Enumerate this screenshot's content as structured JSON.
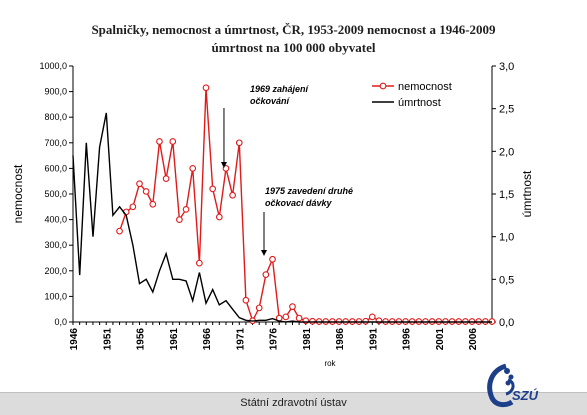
{
  "title_line1": "Spalničky, nemocnost a úmrtnost,  ČR, 1953-2009 nemocnost a 1946-2009",
  "title_line2": "úmrtnost na 100 000 obyvatel",
  "footer_text": "Státní zdravotní ústav",
  "logo_text": "SZÚ",
  "chart_data": {
    "type": "line",
    "xlabel": "rok",
    "ylabel_left": "nemocnost",
    "ylabel_right": "úmrtnost",
    "ylim_left": [
      0,
      1000
    ],
    "ylim_right": [
      0,
      3
    ],
    "yticks_left": [
      "0,0",
      "100,0",
      "200,0",
      "300,0",
      "400,0",
      "500,0",
      "600,0",
      "700,0",
      "800,0",
      "900,0",
      "1000,0"
    ],
    "yticks_right": [
      "0,0",
      "0,5",
      "1,0",
      "1,5",
      "2,0",
      "2,5",
      "3,0"
    ],
    "x_ticks": [
      "1946",
      "1951",
      "1956",
      "1961",
      "1966",
      "1971",
      "1976",
      "1981",
      "1986",
      "1991",
      "1996",
      "2001",
      "2006"
    ],
    "x_range": [
      1946,
      2009
    ],
    "legend_position": "top-right",
    "annotations": [
      {
        "line1": "1969 zahájení",
        "line2": "očkování",
        "year": 1969,
        "value": 590
      },
      {
        "line1": "1975 zavedení druhé",
        "line2": "očkovací dávky",
        "year": 1975,
        "value": 250
      }
    ],
    "series": [
      {
        "name": "nemocnost",
        "axis": "left",
        "color": "#e01b1b",
        "marker": "circle",
        "x": [
          1953,
          1954,
          1955,
          1956,
          1957,
          1958,
          1959,
          1960,
          1961,
          1962,
          1963,
          1964,
          1965,
          1966,
          1967,
          1968,
          1969,
          1970,
          1971,
          1972,
          1973,
          1974,
          1975,
          1976,
          1977,
          1978,
          1979,
          1980,
          1981,
          1982,
          1983,
          1984,
          1985,
          1986,
          1987,
          1988,
          1989,
          1990,
          1991,
          1992,
          1993,
          1994,
          1995,
          1996,
          1997,
          1998,
          1999,
          2000,
          2001,
          2002,
          2003,
          2004,
          2005,
          2006,
          2007,
          2008,
          2009
        ],
        "values": [
          355,
          430,
          450,
          540,
          510,
          460,
          705,
          560,
          705,
          400,
          440,
          600,
          230,
          915,
          520,
          410,
          600,
          495,
          700,
          85,
          5,
          55,
          185,
          245,
          15,
          20,
          60,
          15,
          5,
          3,
          2,
          2,
          2,
          2,
          2,
          2,
          2,
          3,
          20,
          5,
          2,
          2,
          2,
          2,
          2,
          2,
          2,
          2,
          2,
          2,
          2,
          2,
          2,
          2,
          2,
          2,
          2
        ]
      },
      {
        "name": "úmrtnost",
        "axis": "right",
        "color": "#000000",
        "marker": "none",
        "x": [
          1946,
          1947,
          1948,
          1949,
          1950,
          1951,
          1952,
          1953,
          1954,
          1955,
          1956,
          1957,
          1958,
          1959,
          1960,
          1961,
          1962,
          1963,
          1964,
          1965,
          1966,
          1967,
          1968,
          1969,
          1970,
          1971,
          1972,
          1973,
          1974,
          1975,
          1976,
          1977,
          1978,
          1979,
          1980,
          1981,
          1982,
          1983,
          1984,
          1985,
          1986,
          1987,
          1988,
          1989,
          1990,
          1991,
          1992,
          1993,
          1994,
          1995,
          1996,
          1997,
          1998,
          1999,
          2000,
          2001,
          2002,
          2003,
          2004,
          2005,
          2006,
          2007,
          2008,
          2009
        ],
        "values": [
          1.95,
          0.55,
          2.1,
          1.0,
          2.05,
          2.45,
          1.25,
          1.35,
          1.25,
          0.9,
          0.45,
          0.5,
          0.35,
          0.6,
          0.8,
          0.5,
          0.5,
          0.48,
          0.25,
          0.58,
          0.22,
          0.38,
          0.2,
          0.25,
          0.15,
          0.05,
          0.02,
          0.01,
          0.02,
          0.02,
          0.04,
          0.01,
          0.0,
          0.01,
          0.0,
          0.0,
          0.0,
          0.0,
          0.0,
          0.0,
          0.0,
          0.0,
          0.0,
          0.0,
          0.0,
          0.0,
          0.0,
          0.0,
          0.0,
          0.0,
          0.0,
          0.0,
          0.0,
          0.0,
          0.0,
          0.0,
          0.0,
          0.0,
          0.0,
          0.0,
          0.0,
          0.0,
          0.0,
          0.0
        ]
      }
    ]
  }
}
